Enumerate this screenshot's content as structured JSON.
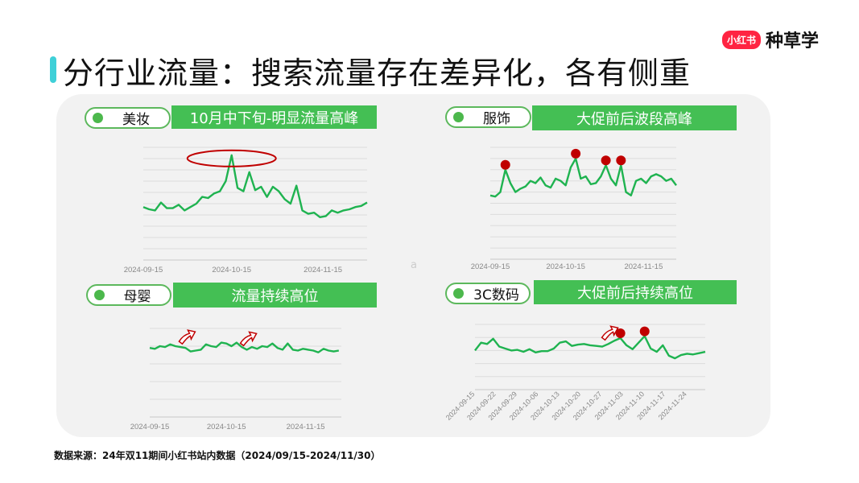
{
  "header": {
    "title": "分行业流量：搜索流量存在差异化，各有侧重",
    "logo_badge": "小红书",
    "logo_text": "种草学"
  },
  "panel_stray_text": "a",
  "footer": {
    "source": "数据来源：24年双11期间小红书站内数据（2024/09/15-2024/11/30）"
  },
  "colors": {
    "line": "#1fb350",
    "marker": "#c00000",
    "tag": "#44bf54",
    "accent": "#3fd0d8",
    "grid": "#dcdcdc"
  },
  "chart_data": [
    {
      "type": "line",
      "category": "美妆",
      "headline": "10月中下旬-明显流量高峰",
      "x_range": [
        "2024-09-15",
        "2024-11-30"
      ],
      "x_step_days": 2,
      "xticks": [
        "2024-09-15",
        "2024-10-15",
        "2024-11-15"
      ],
      "ylim": [
        0,
        100
      ],
      "grid": true,
      "values": [
        47,
        45,
        44,
        51,
        46,
        46,
        49,
        44,
        47,
        50,
        56,
        55,
        59,
        61,
        70,
        93,
        64,
        61,
        78,
        62,
        65,
        56,
        65,
        61,
        54,
        50,
        66,
        44,
        41,
        42,
        38,
        39,
        44,
        42,
        44,
        45,
        47,
        48,
        51
      ],
      "annotation": {
        "type": "ellipse",
        "around": "2024-10-15"
      }
    },
    {
      "type": "line",
      "category": "服饰",
      "headline": "大促前后波段高峰",
      "x_range": [
        "2024-09-15",
        "2024-11-28"
      ],
      "x_step_days": 2,
      "xticks": [
        "2024-09-15",
        "2024-10-15",
        "2024-11-15"
      ],
      "ylim": [
        0,
        100
      ],
      "grid": true,
      "values": [
        57,
        56,
        60,
        80,
        68,
        60,
        63,
        65,
        70,
        68,
        73,
        66,
        64,
        72,
        70,
        66,
        82,
        90,
        72,
        74,
        67,
        68,
        74,
        84,
        72,
        66,
        84,
        60,
        57,
        70,
        72,
        68,
        74,
        76,
        74,
        70,
        72,
        66
      ],
      "annotation": {
        "type": "markers",
        "dates": [
          "2024-09-21",
          "2024-10-19",
          "2024-10-31",
          "2024-11-06"
        ]
      }
    },
    {
      "type": "line",
      "category": "母婴",
      "headline": "流量持续高位",
      "x_range": [
        "2024-09-15",
        "2024-11-29"
      ],
      "x_step_days": 2,
      "xticks": [
        "2024-09-15",
        "2024-10-15",
        "2024-11-15"
      ],
      "ylim": [
        0,
        100
      ],
      "grid": true,
      "values": [
        78,
        77,
        80,
        79,
        82,
        80,
        79,
        78,
        74,
        75,
        76,
        82,
        80,
        79,
        84,
        83,
        80,
        84,
        79,
        76,
        79,
        77,
        80,
        79,
        83,
        78,
        76,
        83,
        76,
        75,
        77,
        76,
        75,
        73,
        77,
        75,
        74,
        75
      ],
      "annotation": {
        "type": "arrows",
        "dates": [
          "2024-09-29",
          "2024-10-23"
        ]
      }
    },
    {
      "type": "line",
      "category": "3C数码",
      "headline": "大促前后持续高位",
      "x_range": [
        "2024-09-15",
        "2024-11-30"
      ],
      "x_step_days": 2,
      "xticks": [
        "2024-09-15",
        "2024-09-22",
        "2024-09-29",
        "2024-10-06",
        "2024-10-13",
        "2024-10-20",
        "2024-10-27",
        "2024-11-03",
        "2024-11-10",
        "2024-11-17",
        "2024-11-24"
      ],
      "ylim": [
        0,
        100
      ],
      "grid": true,
      "values": [
        60,
        72,
        70,
        78,
        66,
        63,
        60,
        61,
        58,
        62,
        57,
        59,
        59,
        63,
        72,
        74,
        67,
        69,
        70,
        68,
        67,
        66,
        70,
        75,
        79,
        68,
        62,
        72,
        82,
        63,
        58,
        68,
        52,
        48,
        53,
        55,
        54,
        56,
        58
      ],
      "annotation": {
        "type": "markers+arrow",
        "dates": [
          "2024-11-02",
          "2024-11-10"
        ],
        "arrow_date": "2024-10-28"
      }
    }
  ]
}
